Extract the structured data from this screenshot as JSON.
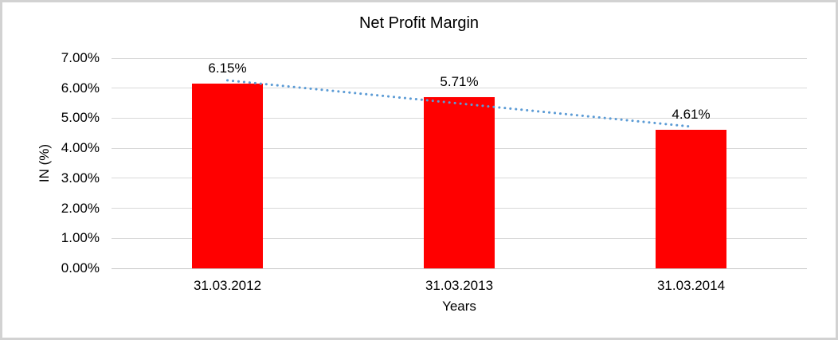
{
  "window": {
    "background": "#ffffff",
    "border_color": "#d2d2d2"
  },
  "chart_data": {
    "type": "bar",
    "title": "Net Profit Margin",
    "categories": [
      "31.03.2012",
      "31.03.2013",
      "31.03.2014"
    ],
    "values": [
      6.15,
      5.71,
      4.61
    ],
    "data_labels": [
      "6.15%",
      "5.71%",
      "4.61%"
    ],
    "xlabel": "Years",
    "ylabel": "IN (%)",
    "ylim": [
      0,
      7
    ],
    "ytick_step": 1,
    "ytick_labels": [
      "0.00%",
      "1.00%",
      "2.00%",
      "3.00%",
      "4.00%",
      "5.00%",
      "6.00%",
      "7.00%"
    ],
    "grid": true,
    "legend": "none",
    "bar_color": "#ff0000",
    "gridline_color": "#d9d9d9",
    "axis_line_color": "#c6c6c6",
    "text_color": "#000000",
    "trendline": {
      "type": "linear",
      "style": "dotted",
      "color": "#5b9bd5"
    }
  }
}
